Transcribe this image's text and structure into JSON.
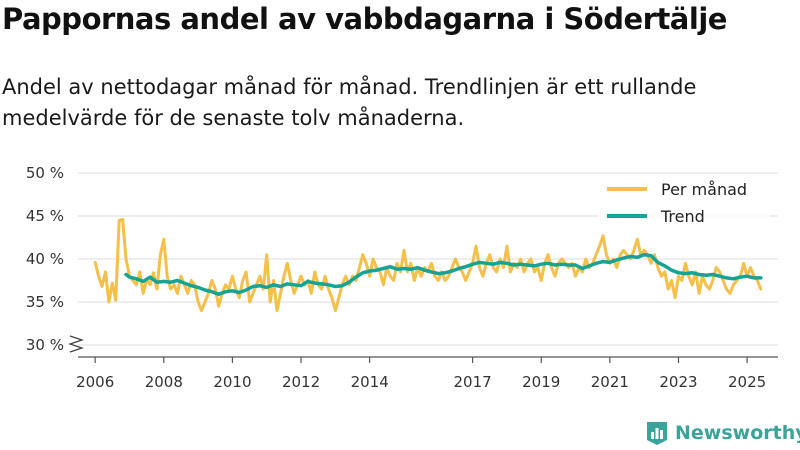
{
  "title": "Pappornas andel av vabbdagarna i Södertälje",
  "subtitle": "Andel av nettodagar månad för månad. Trendlinjen är ett rullande medelvärde för de senaste tolv månaderna.",
  "brand": "Newsworthy",
  "colors": {
    "monthly": "#f5c04a",
    "trend": "#14a394",
    "grid": "#dddddd",
    "axis": "#555555",
    "brand": "#3aa39a"
  },
  "chart_data": {
    "type": "line",
    "ylim": [
      30,
      50
    ],
    "ytick_values": [
      30,
      35,
      40,
      45,
      50
    ],
    "ytick_labels": [
      "30 %",
      "35 %",
      "40 %",
      "45 %",
      "50 %"
    ],
    "xlim": [
      2005.5,
      2025.9
    ],
    "xtick_values": [
      2006,
      2008,
      2010,
      2012,
      2014,
      2017,
      2019,
      2021,
      2023,
      2025
    ],
    "xtick_labels": [
      "2006",
      "2008",
      "2010",
      "2012",
      "2014",
      "2017",
      "2019",
      "2021",
      "2023",
      "2025"
    ],
    "legend": [
      "Per månad",
      "Trend"
    ],
    "legend_position": "top-right",
    "series": [
      {
        "name": "Per månad",
        "points": [
          [
            2006.0,
            39.6
          ],
          [
            2006.1,
            38.0
          ],
          [
            2006.2,
            36.8
          ],
          [
            2006.3,
            38.5
          ],
          [
            2006.4,
            35.0
          ],
          [
            2006.5,
            37.2
          ],
          [
            2006.6,
            35.2
          ],
          [
            2006.7,
            44.5
          ],
          [
            2006.8,
            44.6
          ],
          [
            2006.9,
            40.0
          ],
          [
            2007.0,
            38.0
          ],
          [
            2007.1,
            37.5
          ],
          [
            2007.2,
            37.0
          ],
          [
            2007.3,
            38.5
          ],
          [
            2007.4,
            36.0
          ],
          [
            2007.5,
            37.6
          ],
          [
            2007.6,
            37.0
          ],
          [
            2007.7,
            38.4
          ],
          [
            2007.8,
            36.5
          ],
          [
            2007.9,
            40.5
          ],
          [
            2008.0,
            42.3
          ],
          [
            2008.1,
            38.0
          ],
          [
            2008.2,
            36.5
          ],
          [
            2008.3,
            37.0
          ],
          [
            2008.4,
            36.0
          ],
          [
            2008.5,
            38.0
          ],
          [
            2008.6,
            37.0
          ],
          [
            2008.7,
            36.0
          ],
          [
            2008.8,
            37.5
          ],
          [
            2008.9,
            37.0
          ],
          [
            2009.0,
            35.0
          ],
          [
            2009.1,
            34.0
          ],
          [
            2009.2,
            35.0
          ],
          [
            2009.3,
            36.0
          ],
          [
            2009.4,
            37.5
          ],
          [
            2009.5,
            36.5
          ],
          [
            2009.6,
            34.5
          ],
          [
            2009.7,
            36.0
          ],
          [
            2009.8,
            37.0
          ],
          [
            2009.9,
            36.5
          ],
          [
            2010.0,
            38.0
          ],
          [
            2010.1,
            36.5
          ],
          [
            2010.2,
            35.5
          ],
          [
            2010.3,
            37.5
          ],
          [
            2010.4,
            38.5
          ],
          [
            2010.5,
            35.0
          ],
          [
            2010.6,
            36.0
          ],
          [
            2010.7,
            37.0
          ],
          [
            2010.8,
            38.0
          ],
          [
            2010.9,
            36.5
          ],
          [
            2011.0,
            40.5
          ],
          [
            2011.1,
            35.0
          ],
          [
            2011.2,
            37.5
          ],
          [
            2011.3,
            34.0
          ],
          [
            2011.4,
            36.0
          ],
          [
            2011.5,
            38.0
          ],
          [
            2011.6,
            39.5
          ],
          [
            2011.7,
            37.5
          ],
          [
            2011.8,
            36.0
          ],
          [
            2011.9,
            37.0
          ],
          [
            2012.0,
            38.0
          ],
          [
            2012.1,
            37.0
          ],
          [
            2012.2,
            37.5
          ],
          [
            2012.3,
            36.0
          ],
          [
            2012.4,
            38.5
          ],
          [
            2012.5,
            37.0
          ],
          [
            2012.6,
            36.5
          ],
          [
            2012.7,
            38.0
          ],
          [
            2012.8,
            36.5
          ],
          [
            2012.9,
            35.5
          ],
          [
            2013.0,
            34.0
          ],
          [
            2013.1,
            35.5
          ],
          [
            2013.2,
            37.0
          ],
          [
            2013.3,
            38.0
          ],
          [
            2013.4,
            37.0
          ],
          [
            2013.5,
            38.0
          ],
          [
            2013.6,
            37.5
          ],
          [
            2013.7,
            39.0
          ],
          [
            2013.8,
            40.5
          ],
          [
            2013.9,
            39.5
          ],
          [
            2014.0,
            38.0
          ],
          [
            2014.1,
            40.0
          ],
          [
            2014.2,
            39.0
          ],
          [
            2014.3,
            38.5
          ],
          [
            2014.4,
            37.0
          ],
          [
            2014.5,
            39.0
          ],
          [
            2014.6,
            38.0
          ],
          [
            2014.7,
            37.5
          ],
          [
            2014.8,
            39.5
          ],
          [
            2014.9,
            38.5
          ],
          [
            2015.0,
            41.0
          ],
          [
            2015.1,
            38.5
          ],
          [
            2015.2,
            39.5
          ],
          [
            2015.3,
            37.5
          ],
          [
            2015.4,
            39.0
          ],
          [
            2015.5,
            38.0
          ],
          [
            2015.6,
            39.0
          ],
          [
            2015.7,
            38.5
          ],
          [
            2015.8,
            39.5
          ],
          [
            2015.9,
            38.0
          ],
          [
            2016.0,
            37.5
          ],
          [
            2016.1,
            38.5
          ],
          [
            2016.2,
            37.5
          ],
          [
            2016.3,
            38.0
          ],
          [
            2016.4,
            39.0
          ],
          [
            2016.5,
            40.0
          ],
          [
            2016.6,
            39.0
          ],
          [
            2016.7,
            38.5
          ],
          [
            2016.8,
            37.5
          ],
          [
            2016.9,
            38.5
          ],
          [
            2017.0,
            39.5
          ],
          [
            2017.1,
            41.5
          ],
          [
            2017.2,
            39.0
          ],
          [
            2017.3,
            38.0
          ],
          [
            2017.4,
            39.5
          ],
          [
            2017.5,
            40.5
          ],
          [
            2017.6,
            39.0
          ],
          [
            2017.7,
            38.5
          ],
          [
            2017.8,
            40.0
          ],
          [
            2017.9,
            39.0
          ],
          [
            2018.0,
            41.5
          ],
          [
            2018.1,
            38.5
          ],
          [
            2018.2,
            39.5
          ],
          [
            2018.3,
            39.0
          ],
          [
            2018.4,
            40.0
          ],
          [
            2018.5,
            38.5
          ],
          [
            2018.6,
            39.5
          ],
          [
            2018.7,
            40.0
          ],
          [
            2018.8,
            38.5
          ],
          [
            2018.9,
            39.0
          ],
          [
            2019.0,
            37.5
          ],
          [
            2019.1,
            39.5
          ],
          [
            2019.2,
            40.5
          ],
          [
            2019.3,
            39.0
          ],
          [
            2019.4,
            38.0
          ],
          [
            2019.5,
            39.5
          ],
          [
            2019.6,
            40.0
          ],
          [
            2019.7,
            39.5
          ],
          [
            2019.8,
            39.0
          ],
          [
            2019.9,
            39.5
          ],
          [
            2020.0,
            38.0
          ],
          [
            2020.1,
            39.0
          ],
          [
            2020.2,
            38.5
          ],
          [
            2020.3,
            40.0
          ],
          [
            2020.4,
            39.0
          ],
          [
            2020.5,
            39.5
          ],
          [
            2020.6,
            40.5
          ],
          [
            2020.7,
            41.5
          ],
          [
            2020.8,
            42.7
          ],
          [
            2020.9,
            40.5
          ],
          [
            2021.0,
            39.5
          ],
          [
            2021.1,
            40.0
          ],
          [
            2021.2,
            39.0
          ],
          [
            2021.3,
            40.5
          ],
          [
            2021.4,
            41.0
          ],
          [
            2021.5,
            40.5
          ],
          [
            2021.6,
            40.0
          ],
          [
            2021.7,
            41.0
          ],
          [
            2021.8,
            42.3
          ],
          [
            2021.9,
            40.5
          ],
          [
            2022.0,
            41.0
          ],
          [
            2022.1,
            40.5
          ],
          [
            2022.2,
            39.5
          ],
          [
            2022.3,
            40.5
          ],
          [
            2022.4,
            39.0
          ],
          [
            2022.5,
            38.0
          ],
          [
            2022.6,
            38.5
          ],
          [
            2022.7,
            36.5
          ],
          [
            2022.8,
            37.5
          ],
          [
            2022.9,
            35.5
          ],
          [
            2023.0,
            38.0
          ],
          [
            2023.1,
            37.5
          ],
          [
            2023.2,
            39.5
          ],
          [
            2023.3,
            38.0
          ],
          [
            2023.4,
            37.0
          ],
          [
            2023.5,
            38.5
          ],
          [
            2023.6,
            36.0
          ],
          [
            2023.7,
            38.0
          ],
          [
            2023.8,
            37.0
          ],
          [
            2023.9,
            36.5
          ],
          [
            2024.0,
            37.5
          ],
          [
            2024.1,
            39.0
          ],
          [
            2024.2,
            38.5
          ],
          [
            2024.3,
            37.5
          ],
          [
            2024.4,
            36.5
          ],
          [
            2024.5,
            36.0
          ],
          [
            2024.6,
            37.0
          ],
          [
            2024.7,
            37.5
          ],
          [
            2024.8,
            38.0
          ],
          [
            2024.9,
            39.5
          ],
          [
            2025.0,
            38.0
          ],
          [
            2025.1,
            39.0
          ],
          [
            2025.2,
            38.0
          ],
          [
            2025.3,
            37.5
          ],
          [
            2025.4,
            36.5
          ]
        ]
      },
      {
        "name": "Trend",
        "points": [
          [
            2006.9,
            38.2
          ],
          [
            2007.0,
            37.9
          ],
          [
            2007.2,
            37.7
          ],
          [
            2007.4,
            37.4
          ],
          [
            2007.6,
            37.9
          ],
          [
            2007.8,
            37.3
          ],
          [
            2008.0,
            37.4
          ],
          [
            2008.2,
            37.3
          ],
          [
            2008.4,
            37.5
          ],
          [
            2008.6,
            37.2
          ],
          [
            2008.8,
            36.9
          ],
          [
            2009.0,
            36.7
          ],
          [
            2009.2,
            36.4
          ],
          [
            2009.4,
            36.2
          ],
          [
            2009.6,
            35.9
          ],
          [
            2009.8,
            36.2
          ],
          [
            2010.0,
            36.3
          ],
          [
            2010.2,
            36.1
          ],
          [
            2010.4,
            36.4
          ],
          [
            2010.6,
            36.8
          ],
          [
            2010.8,
            36.9
          ],
          [
            2011.0,
            36.7
          ],
          [
            2011.2,
            37.0
          ],
          [
            2011.4,
            36.8
          ],
          [
            2011.6,
            37.1
          ],
          [
            2011.8,
            37.0
          ],
          [
            2012.0,
            36.9
          ],
          [
            2012.2,
            37.4
          ],
          [
            2012.4,
            37.2
          ],
          [
            2012.6,
            37.1
          ],
          [
            2012.8,
            37.0
          ],
          [
            2013.0,
            36.8
          ],
          [
            2013.2,
            36.9
          ],
          [
            2013.4,
            37.3
          ],
          [
            2013.6,
            37.9
          ],
          [
            2013.8,
            38.4
          ],
          [
            2014.0,
            38.6
          ],
          [
            2014.2,
            38.7
          ],
          [
            2014.4,
            38.9
          ],
          [
            2014.6,
            39.1
          ],
          [
            2014.8,
            38.8
          ],
          [
            2015.0,
            38.9
          ],
          [
            2015.2,
            38.8
          ],
          [
            2015.4,
            39.0
          ],
          [
            2015.6,
            38.7
          ],
          [
            2015.8,
            38.5
          ],
          [
            2016.0,
            38.3
          ],
          [
            2016.2,
            38.4
          ],
          [
            2016.4,
            38.6
          ],
          [
            2016.6,
            38.9
          ],
          [
            2016.8,
            39.1
          ],
          [
            2017.0,
            39.4
          ],
          [
            2017.2,
            39.6
          ],
          [
            2017.4,
            39.5
          ],
          [
            2017.6,
            39.4
          ],
          [
            2017.8,
            39.6
          ],
          [
            2018.0,
            39.5
          ],
          [
            2018.2,
            39.3
          ],
          [
            2018.4,
            39.4
          ],
          [
            2018.6,
            39.3
          ],
          [
            2018.8,
            39.2
          ],
          [
            2019.0,
            39.4
          ],
          [
            2019.2,
            39.5
          ],
          [
            2019.4,
            39.3
          ],
          [
            2019.6,
            39.4
          ],
          [
            2019.8,
            39.3
          ],
          [
            2020.0,
            39.3
          ],
          [
            2020.2,
            38.9
          ],
          [
            2020.4,
            39.2
          ],
          [
            2020.6,
            39.5
          ],
          [
            2020.8,
            39.7
          ],
          [
            2021.0,
            39.6
          ],
          [
            2021.2,
            39.9
          ],
          [
            2021.4,
            40.1
          ],
          [
            2021.6,
            40.3
          ],
          [
            2021.8,
            40.2
          ],
          [
            2022.0,
            40.5
          ],
          [
            2022.2,
            40.4
          ],
          [
            2022.4,
            39.6
          ],
          [
            2022.6,
            39.2
          ],
          [
            2022.8,
            38.7
          ],
          [
            2023.0,
            38.4
          ],
          [
            2023.2,
            38.3
          ],
          [
            2023.4,
            38.4
          ],
          [
            2023.6,
            38.2
          ],
          [
            2023.8,
            38.1
          ],
          [
            2024.0,
            38.2
          ],
          [
            2024.2,
            38.0
          ],
          [
            2024.4,
            37.8
          ],
          [
            2024.6,
            37.7
          ],
          [
            2024.8,
            37.9
          ],
          [
            2025.0,
            38.0
          ],
          [
            2025.2,
            37.8
          ],
          [
            2025.4,
            37.8
          ]
        ]
      }
    ]
  }
}
